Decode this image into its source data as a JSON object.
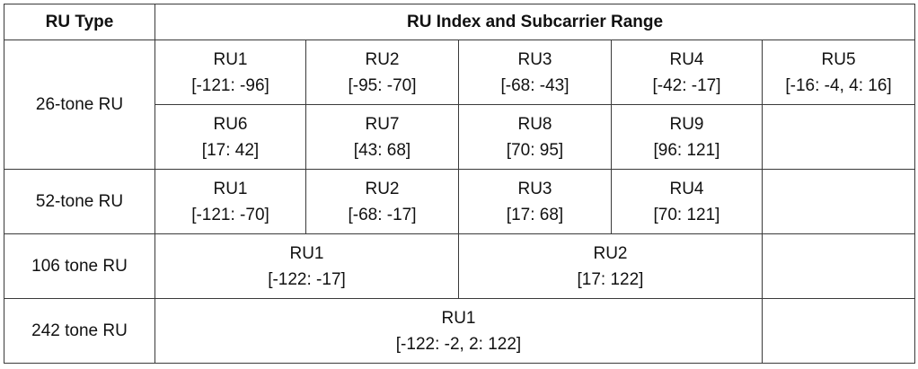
{
  "table": {
    "header": [
      "RU Type",
      "RU Index and Subcarrier Range"
    ],
    "groups": [
      {
        "type": "26-tone RU",
        "rows": [
          [
            {
              "name": "RU1",
              "range": "[-121: -96]"
            },
            {
              "name": "RU2",
              "range": "[-95: -70]"
            },
            {
              "name": "RU3",
              "range": "[-68: -43]"
            },
            {
              "name": "RU4",
              "range": "[-42: -17]"
            },
            {
              "name": "RU5",
              "range": "[-16: -4, 4: 16]"
            }
          ],
          [
            {
              "name": "RU6",
              "range": "[17: 42]"
            },
            {
              "name": "RU7",
              "range": "[43: 68]"
            },
            {
              "name": "RU8",
              "range": "[70: 95]"
            },
            {
              "name": "RU9",
              "range": "[96: 121]"
            }
          ]
        ]
      },
      {
        "type": "52-tone RU",
        "rows": [
          [
            {
              "name": "RU1",
              "range": "[-121: -70]"
            },
            {
              "name": "RU2",
              "range": "[-68: -17]"
            },
            {
              "name": "RU3",
              "range": "[17: 68]"
            },
            {
              "name": "RU4",
              "range": "[70: 121]"
            }
          ]
        ]
      },
      {
        "type": "106 tone RU",
        "rows": [
          [
            {
              "name": "RU1",
              "range": "[-122: -17]"
            },
            {
              "name": "RU2",
              "range": "[17: 122]"
            }
          ]
        ]
      },
      {
        "type": "242 tone RU",
        "rows": [
          [
            {
              "name": "RU1",
              "range": "[-122: -2, 2: 122]"
            }
          ]
        ]
      }
    ]
  }
}
